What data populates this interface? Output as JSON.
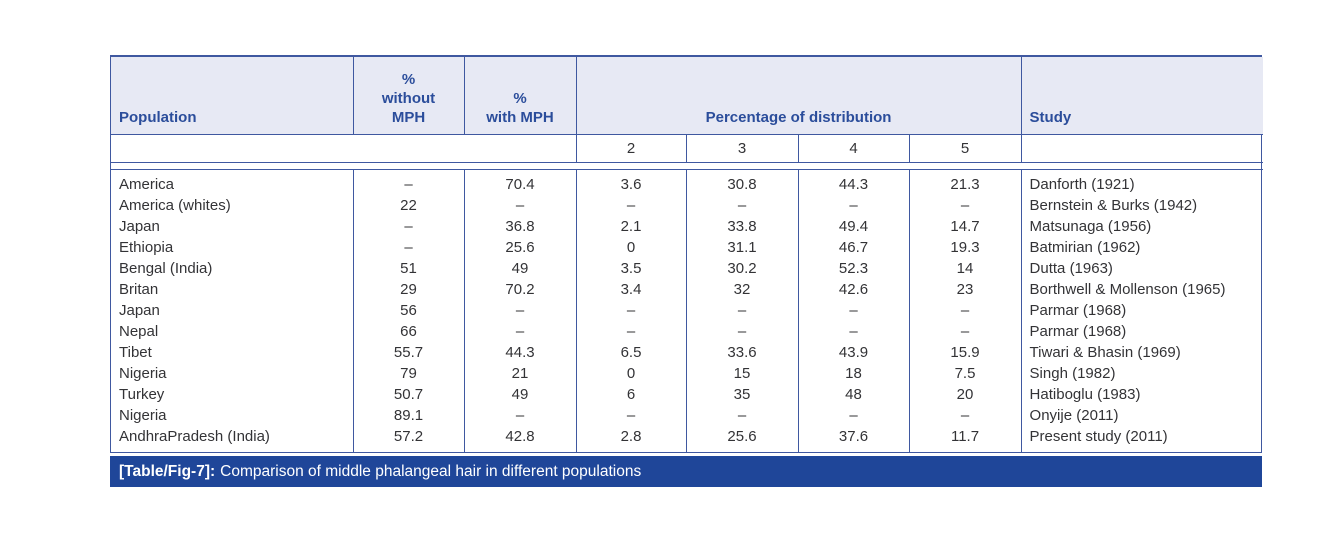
{
  "table": {
    "header": {
      "population": "Population",
      "pct_without_mph": "%\nwithout\nMPH",
      "pct_with_mph": "%\nwith MPH",
      "distribution": "Percentage of distribution",
      "dist_cols": [
        "2",
        "3",
        "4",
        "5"
      ],
      "study": "Study"
    },
    "col_keys": [
      "population",
      "pct-without-mph",
      "pct-with-mph",
      "dist-2",
      "dist-3",
      "dist-4",
      "dist-5",
      "study"
    ],
    "rows": [
      [
        "America",
        "–",
        "70.4",
        "3.6",
        "30.8",
        "44.3",
        "21.3",
        "Danforth (1921)"
      ],
      [
        "America (whites)",
        "22",
        "–",
        "–",
        "–",
        "–",
        "–",
        "Bernstein & Burks (1942)"
      ],
      [
        "Japan",
        "–",
        "36.8",
        "2.1",
        "33.8",
        "49.4",
        "14.7",
        "Matsunaga (1956)"
      ],
      [
        "Ethiopia",
        "–",
        "25.6",
        "0",
        "31.1",
        "46.7",
        "19.3",
        "Batmirian (1962)"
      ],
      [
        "Bengal (India)",
        "51",
        "49",
        "3.5",
        "30.2",
        "52.3",
        "14",
        "Dutta (1963)"
      ],
      [
        "Britan",
        "29",
        "70.2",
        "3.4",
        "32",
        "42.6",
        "23",
        "Borthwell & Mollenson (1965)"
      ],
      [
        "Japan",
        "56",
        "–",
        "–",
        "–",
        "–",
        "–",
        "Parmar (1968)"
      ],
      [
        "Nepal",
        "66",
        "–",
        "–",
        "–",
        "–",
        "–",
        "Parmar (1968)"
      ],
      [
        "Tibet",
        "55.7",
        "44.3",
        "6.5",
        "33.6",
        "43.9",
        "15.9",
        "Tiwari & Bhasin (1969)"
      ],
      [
        "Nigeria",
        "79",
        "21",
        "0",
        "15",
        "18",
        "7.5",
        "Singh (1982)"
      ],
      [
        "Turkey",
        "50.7",
        "49",
        "6",
        "35",
        "48",
        "20",
        "Hatiboglu (1983)"
      ],
      [
        "Nigeria",
        "89.1",
        "–",
        "–",
        "–",
        "–",
        "–",
        "Onyije (2011)"
      ],
      [
        "AndhraPradesh (India)",
        "57.2",
        "42.8",
        "2.8",
        "25.6",
        "37.6",
        "11.7",
        "Present study (2011)"
      ]
    ],
    "caption": {
      "label": "[Table/Fig-7]:",
      "text": "Comparison of middle phalangeal hair in different populations"
    },
    "colors": {
      "header_bg": "#e7e9f4",
      "header_text": "#2b4d9b",
      "border": "#3f58a0",
      "caption_bg": "#1f4699",
      "caption_text": "#ffffff",
      "body_text": "#333336"
    }
  }
}
